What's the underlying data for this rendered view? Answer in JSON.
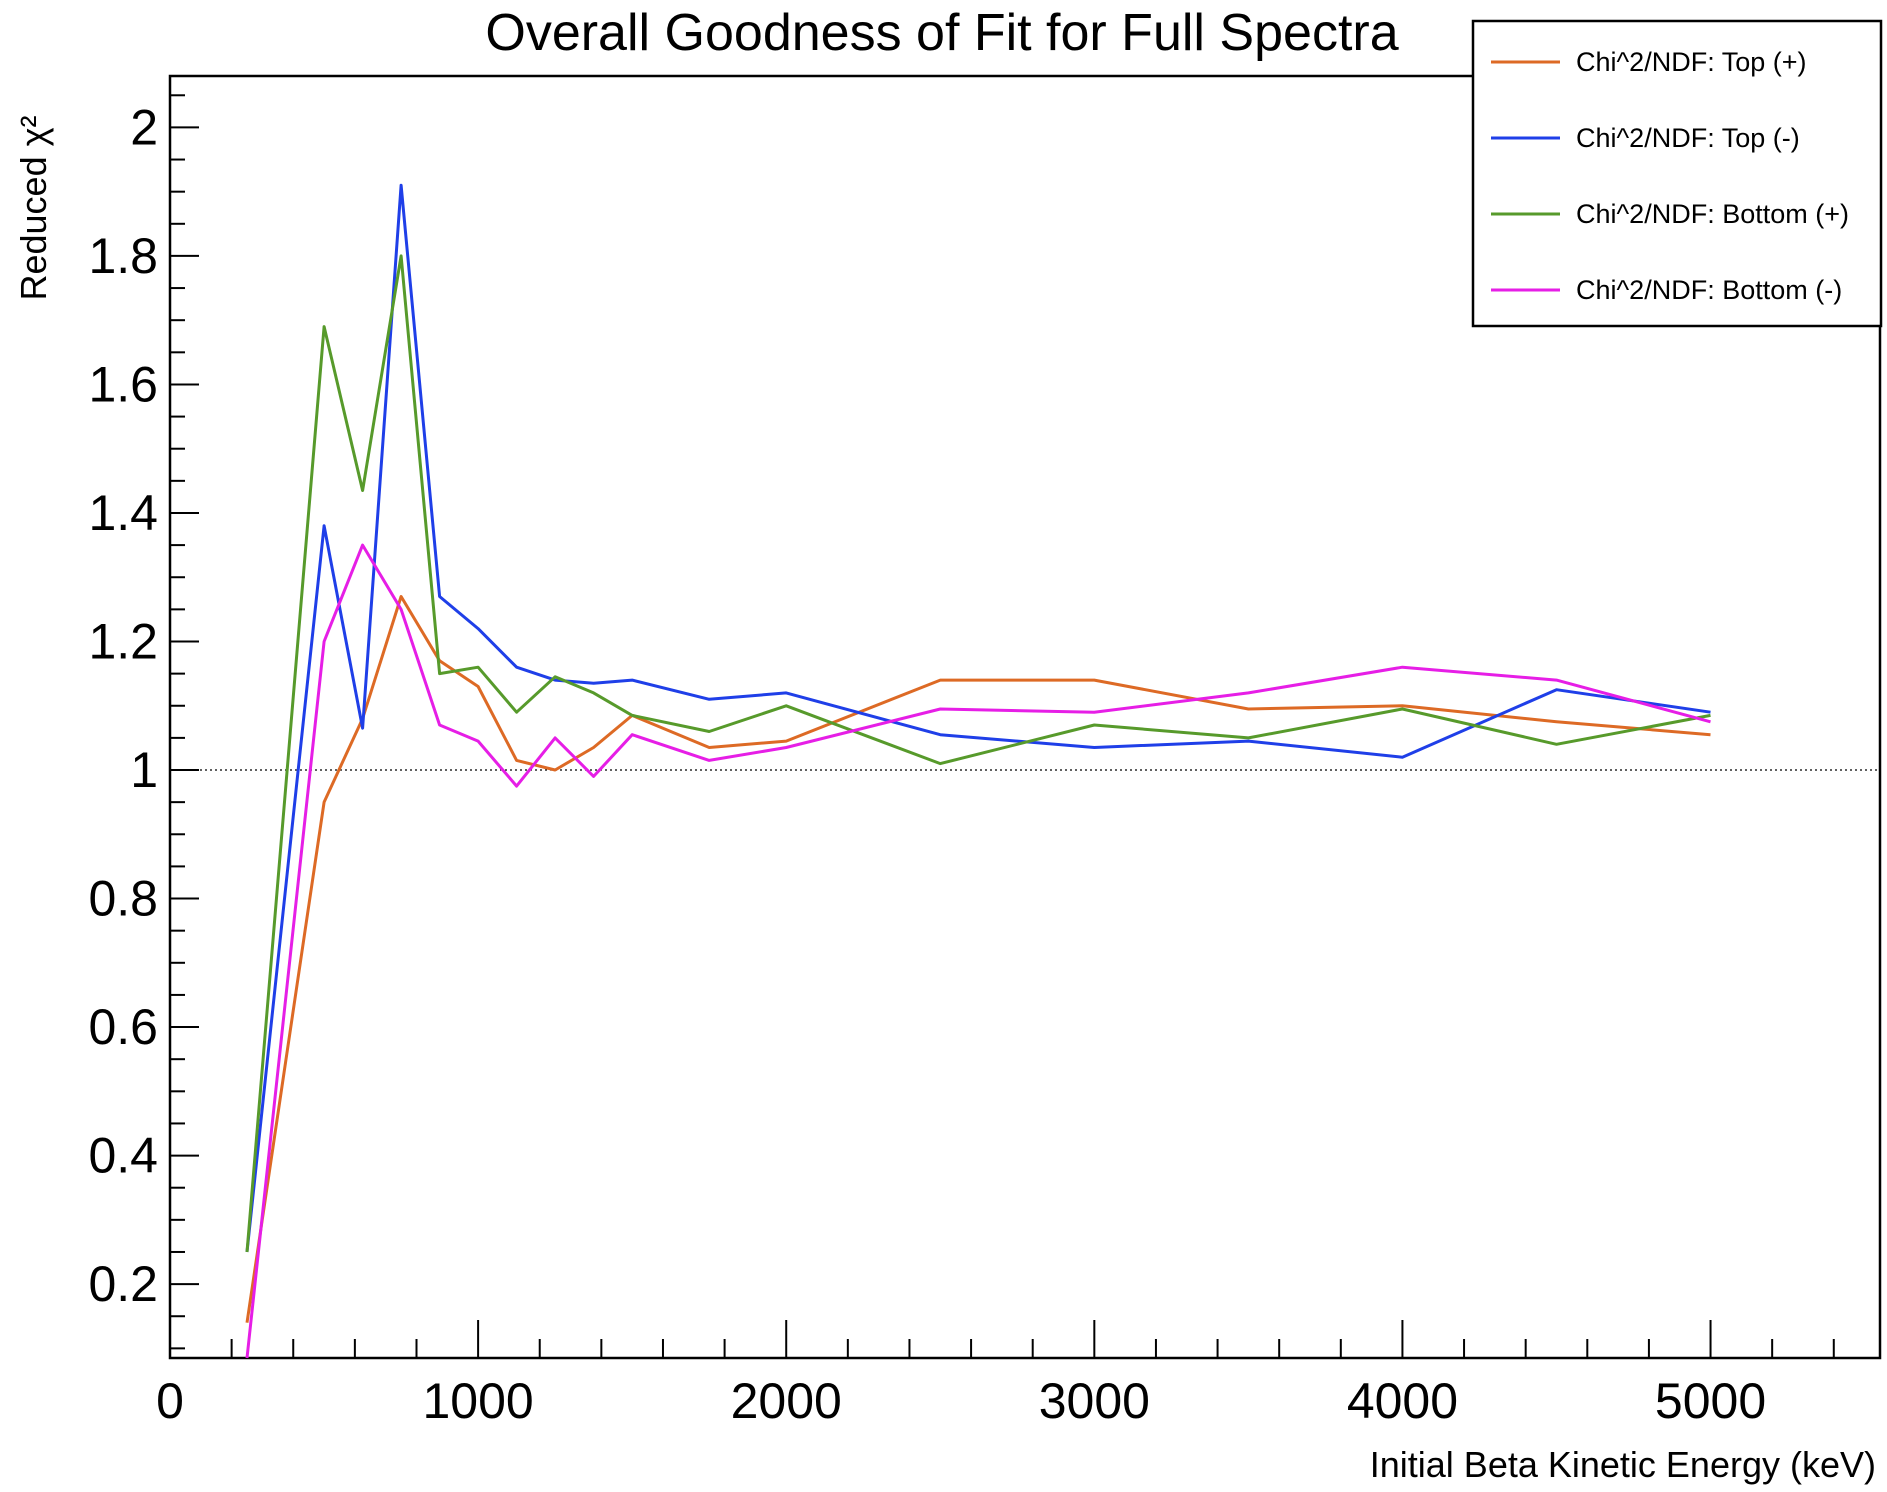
{
  "chart_data": {
    "type": "line",
    "title": "Overall Goodness of Fit for Full Spectra",
    "xlabel": "Initial Beta Kinetic Energy (keV)",
    "ylabel": "Reduced χ²",
    "xlim": [
      0,
      5550
    ],
    "ylim": [
      0.085,
      2.08
    ],
    "x_ticks": [
      0,
      1000,
      2000,
      3000,
      4000,
      5000
    ],
    "y_ticks": [
      0.2,
      0.4,
      0.6,
      0.8,
      1,
      1.2,
      1.4,
      1.6,
      1.8,
      2
    ],
    "x_tick_labels": [
      "0",
      "1000",
      "2000",
      "3000",
      "4000",
      "5000"
    ],
    "y_tick_labels": [
      "0.2",
      "0.4",
      "0.6",
      "0.8",
      "1",
      "1.2",
      "1.4",
      "1.6",
      "1.8",
      "2"
    ],
    "reference_line": {
      "y": 1,
      "style": "dotted"
    },
    "grid": false,
    "legend_position": "top-right",
    "x": [
      250,
      500,
      625,
      750,
      875,
      1000,
      1125,
      1250,
      1375,
      1500,
      1750,
      2000,
      2500,
      3000,
      3500,
      4000,
      4500,
      5000
    ],
    "series": [
      {
        "name": "Chi^2/NDF:  Top (+)",
        "color": "#dd6a25",
        "values": [
          0.14,
          0.95,
          1.08,
          1.27,
          1.17,
          1.13,
          1.015,
          1.0,
          1.035,
          1.085,
          1.035,
          1.045,
          1.14,
          1.14,
          1.095,
          1.1,
          1.075,
          1.055
        ]
      },
      {
        "name": "Chi^2/NDF:  Top (-)",
        "color": "#1f3fe8",
        "values": [
          0.25,
          1.38,
          1.065,
          1.91,
          1.27,
          1.22,
          1.16,
          1.14,
          1.135,
          1.14,
          1.11,
          1.12,
          1.055,
          1.035,
          1.045,
          1.02,
          1.125,
          1.09
        ]
      },
      {
        "name": "Chi^2/NDF:  Bottom (+)",
        "color": "#579a2b",
        "values": [
          0.25,
          1.69,
          1.435,
          1.8,
          1.15,
          1.16,
          1.09,
          1.145,
          1.12,
          1.085,
          1.06,
          1.1,
          1.01,
          1.07,
          1.05,
          1.095,
          1.04,
          1.085
        ]
      },
      {
        "name": "Chi^2/NDF:  Bottom (-)",
        "color": "#e61ee6",
        "values": [
          0.085,
          1.2,
          1.35,
          1.25,
          1.07,
          1.045,
          0.975,
          1.05,
          0.99,
          1.055,
          1.015,
          1.035,
          1.095,
          1.09,
          1.12,
          1.16,
          1.14,
          1.075
        ]
      }
    ]
  }
}
